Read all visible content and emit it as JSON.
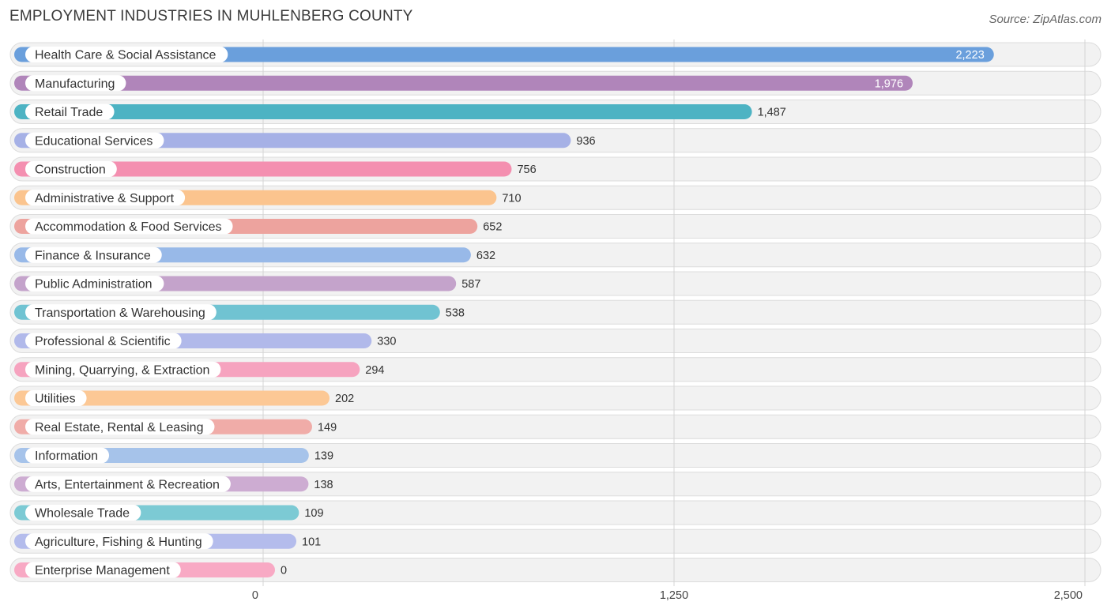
{
  "chart_data": {
    "type": "bar",
    "orientation": "horizontal",
    "title": "EMPLOYMENT INDUSTRIES IN MUHLENBERG COUNTY",
    "source": "Source: ZipAtlas.com",
    "xlim": [
      0,
      2500
    ],
    "xticks": [
      0,
      1250,
      2500
    ],
    "xtick_labels": [
      "0",
      "1,250",
      "2,500"
    ],
    "categories": [
      "Health Care & Social Assistance",
      "Manufacturing",
      "Retail Trade",
      "Educational Services",
      "Construction",
      "Administrative & Support",
      "Accommodation & Food Services",
      "Finance & Insurance",
      "Public Administration",
      "Transportation & Warehousing",
      "Professional & Scientific",
      "Mining, Quarrying, & Extraction",
      "Utilities",
      "Real Estate, Rental & Leasing",
      "Information",
      "Arts, Entertainment & Recreation",
      "Wholesale Trade",
      "Agriculture, Fishing & Hunting",
      "Enterprise Management"
    ],
    "values": [
      2223,
      1976,
      1487,
      936,
      756,
      710,
      652,
      632,
      587,
      538,
      330,
      294,
      202,
      149,
      139,
      138,
      109,
      101,
      0
    ],
    "value_labels": [
      "2,223",
      "1,976",
      "1,487",
      "936",
      "756",
      "710",
      "652",
      "632",
      "587",
      "538",
      "330",
      "294",
      "202",
      "149",
      "139",
      "138",
      "109",
      "101",
      "0"
    ],
    "colors": [
      "#6a9fdc",
      "#b085ba",
      "#4db3c3",
      "#a6b1e6",
      "#f48fb0",
      "#fbc48e",
      "#eda39e",
      "#98b9e8",
      "#c4a3cb",
      "#70c3d2",
      "#b1b9ea",
      "#f6a3bf",
      "#fcc895",
      "#f0aca8",
      "#a6c3ea",
      "#cdacd2",
      "#7ccad4",
      "#b4bcec",
      "#f8a9c4"
    ]
  }
}
